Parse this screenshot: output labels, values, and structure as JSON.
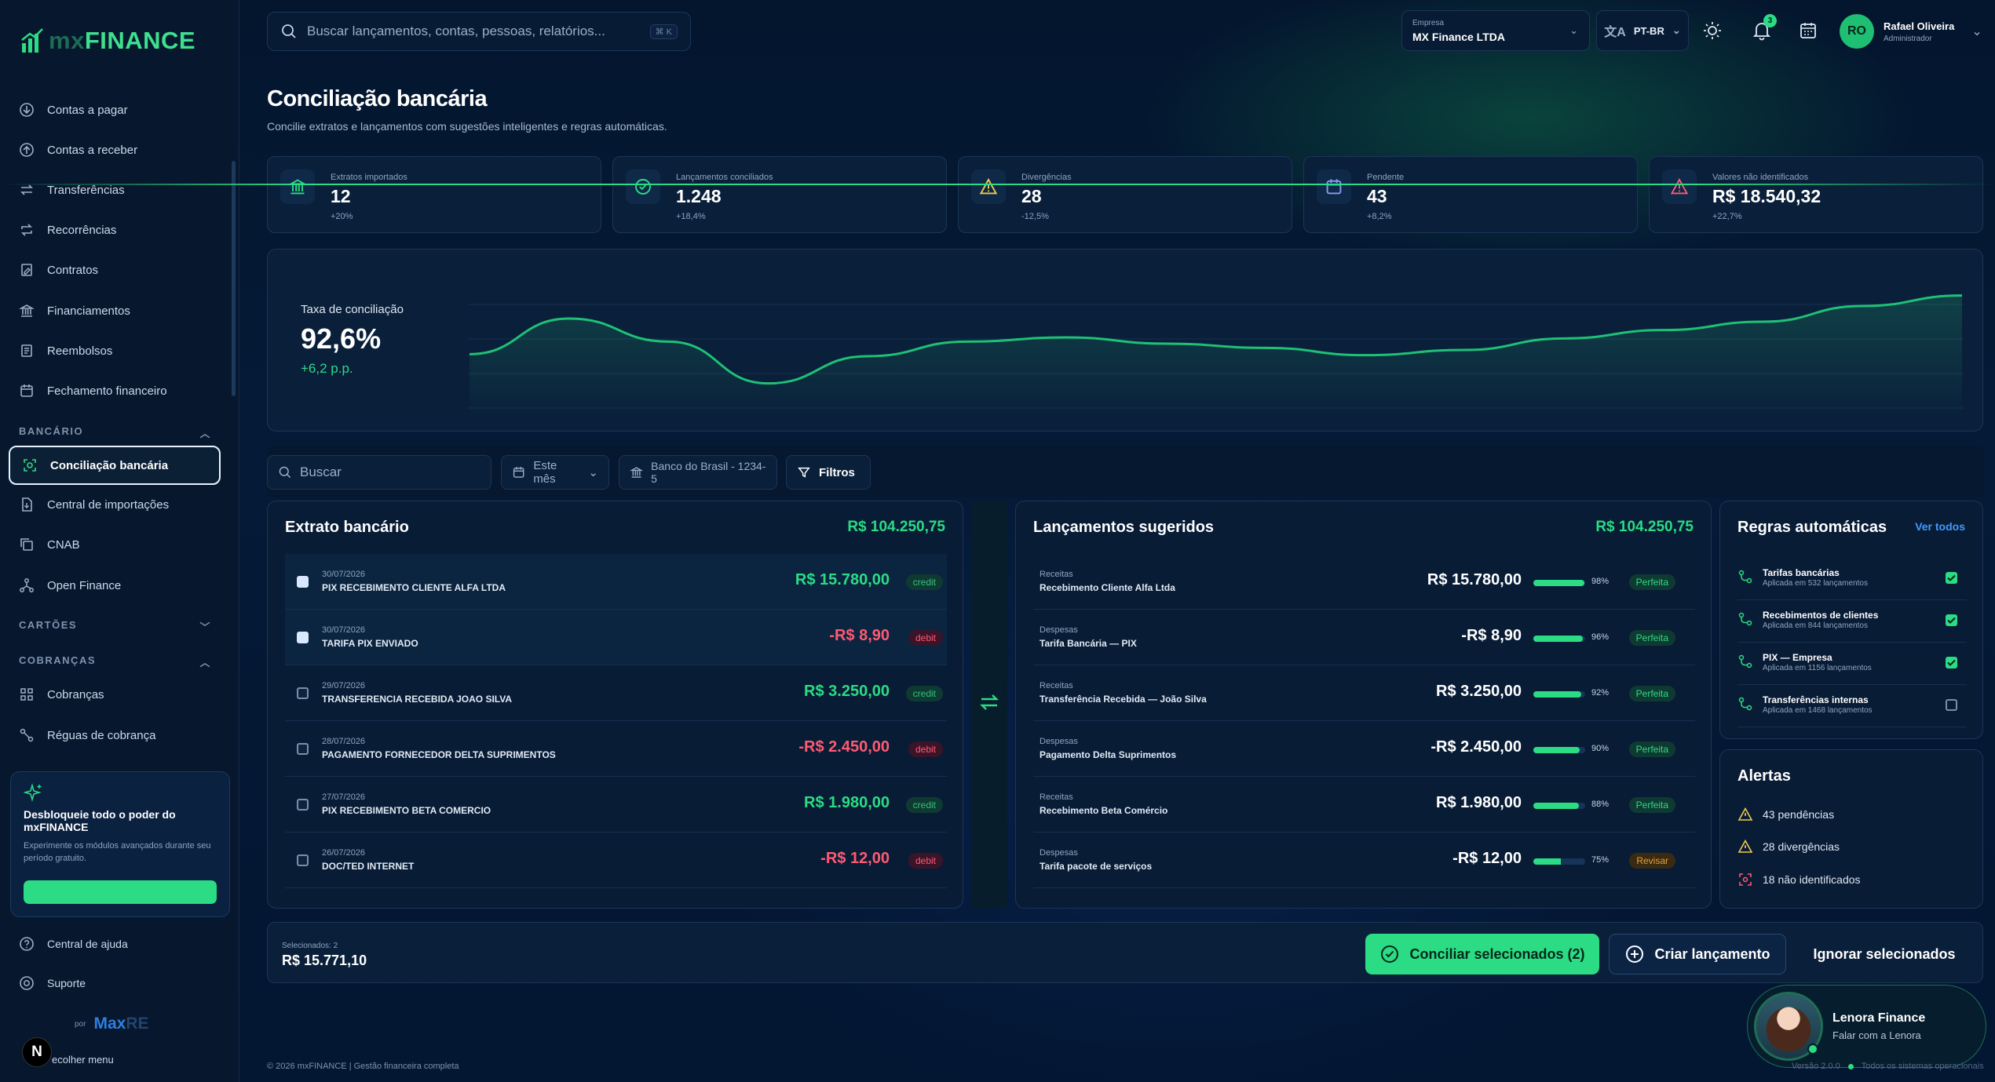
{
  "app": {
    "logo_prefix": "mx",
    "logo_main": "FINANCE"
  },
  "sidebar": {
    "items": [
      {
        "label": "Contas a pagar",
        "icon": "arrow-down-circle-icon"
      },
      {
        "label": "Contas a receber",
        "icon": "arrow-up-circle-icon"
      },
      {
        "label": "Transferências",
        "icon": "transfer-icon"
      },
      {
        "label": "Recorrências",
        "icon": "repeat-icon"
      },
      {
        "label": "Contratos",
        "icon": "contract-icon"
      },
      {
        "label": "Financiamentos",
        "icon": "bank-icon"
      },
      {
        "label": "Reembolsos",
        "icon": "receipt-icon"
      },
      {
        "label": "Fechamento financeiro",
        "icon": "calendar-icon"
      }
    ],
    "section_bancario": "BANCÁRIO",
    "bancario_items": [
      {
        "label": "Conciliação bancária",
        "icon": "reconcile-icon"
      },
      {
        "label": "Central de importações",
        "icon": "import-file-icon"
      },
      {
        "label": "CNAB",
        "icon": "copy-icon"
      },
      {
        "label": "Open Finance",
        "icon": "network-icon"
      }
    ],
    "section_cartoes": "CARTÕES",
    "section_cobrancas": "COBRANÇAS",
    "cobrancas_items": [
      {
        "label": "Cobranças",
        "icon": "grid-icon"
      },
      {
        "label": "Réguas de cobrança",
        "icon": "route-icon"
      }
    ],
    "promo": {
      "title": "Desbloqueie todo o poder do mxFINANCE",
      "text": "Experimente os módulos avançados durante seu período gratuito."
    },
    "help": "Central de ajuda",
    "support": "Suporte",
    "powered_by": "por",
    "powered_brand_a": "Max",
    "powered_brand_b": "RE",
    "collapse": "ecolher menu",
    "badge_letter": "N"
  },
  "header": {
    "search_placeholder": "Buscar lançamentos, contas, pessoas, relatórios...",
    "search_shortcut": "⌘ K",
    "company_label": "Empresa",
    "company_value": "MX Finance LTDA",
    "language": "PT-BR",
    "notif_count": "3",
    "user_initials": "RO",
    "user_name": "Rafael Oliveira",
    "user_role": "Administrador"
  },
  "page": {
    "title": "Conciliação bancária",
    "subtitle": "Concilie extratos e lançamentos com sugestões inteligentes e regras automáticas."
  },
  "kpis": [
    {
      "label": "Extratos importados",
      "value": "12",
      "delta": "+20%",
      "icon": "bank-icon",
      "color": "#2bdc84"
    },
    {
      "label": "Lançamentos conciliados",
      "value": "1.248",
      "delta": "+18,4%",
      "icon": "check-circle-icon",
      "color": "#2bdc84"
    },
    {
      "label": "Divergências",
      "value": "28",
      "delta": "-12,5%",
      "icon": "warning-icon",
      "color": "#f2c94c"
    },
    {
      "label": "Pendente",
      "value": "43",
      "delta": "+8,2%",
      "icon": "calendar-icon",
      "color": "#8b9cf0"
    },
    {
      "label": "Valores não identificados",
      "value": "R$ 18.540,32",
      "delta": "+22,7%",
      "icon": "alert-triangle-icon",
      "color": "#ff5a72"
    }
  ],
  "rate": {
    "label": "Taxa de conciliação",
    "value": "92,6%",
    "delta": "+6,2 p.p."
  },
  "chart_data": {
    "type": "line",
    "series": [
      {
        "values": [
          87.0,
          90.4,
          88.2,
          84.2,
          86.8,
          88.2,
          88.6,
          88.0,
          87.6,
          86.9,
          87.4,
          88.5,
          89.3,
          90.1,
          91.6,
          92.6
        ]
      }
    ]
  },
  "filters": {
    "search_placeholder": "Buscar",
    "period": "Este mês",
    "account": "Banco do Brasil - 1234-5",
    "filters_btn": "Filtros"
  },
  "extrato": {
    "title": "Extrato bancário",
    "total": "R$ 104.250,75",
    "rows": [
      {
        "date": "30/07/2026",
        "desc": "PIX RECEBIMENTO CLIENTE ALFA LTDA",
        "amount": "R$ 15.780,00",
        "type": "credit",
        "checked": true
      },
      {
        "date": "30/07/2026",
        "desc": "TARIFA PIX ENVIADO",
        "amount": "-R$ 8,90",
        "type": "debit",
        "checked": true
      },
      {
        "date": "29/07/2026",
        "desc": "TRANSFERENCIA RECEBIDA JOAO SILVA",
        "amount": "R$ 3.250,00",
        "type": "credit",
        "checked": false
      },
      {
        "date": "28/07/2026",
        "desc": "PAGAMENTO FORNECEDOR DELTA SUPRIMENTOS",
        "amount": "-R$ 2.450,00",
        "type": "debit",
        "checked": false
      },
      {
        "date": "27/07/2026",
        "desc": "PIX RECEBIMENTO BETA COMERCIO",
        "amount": "R$ 1.980,00",
        "type": "credit",
        "checked": false
      },
      {
        "date": "26/07/2026",
        "desc": "DOC/TED INTERNET",
        "amount": "-R$ 12,00",
        "type": "debit",
        "checked": false
      }
    ]
  },
  "sugeridos": {
    "title": "Lançamentos sugeridos",
    "total": "R$ 104.250,75",
    "rows": [
      {
        "cat": "Receitas",
        "desc": "Recebimento Cliente Alfa Ltda",
        "amount": "R$ 15.780,00",
        "match": 98,
        "match_label": "98%",
        "status": "Perfeita"
      },
      {
        "cat": "Despesas",
        "desc": "Tarifa Bancária — PIX",
        "amount": "-R$ 8,90",
        "match": 96,
        "match_label": "96%",
        "status": "Perfeita"
      },
      {
        "cat": "Receitas",
        "desc": "Transferência Recebida — João Silva",
        "amount": "R$ 3.250,00",
        "match": 92,
        "match_label": "92%",
        "status": "Perfeita"
      },
      {
        "cat": "Despesas",
        "desc": "Pagamento Delta Suprimentos",
        "amount": "-R$ 2.450,00",
        "match": 90,
        "match_label": "90%",
        "status": "Perfeita"
      },
      {
        "cat": "Receitas",
        "desc": "Recebimento Beta Comércio",
        "amount": "R$ 1.980,00",
        "match": 88,
        "match_label": "88%",
        "status": "Perfeita"
      },
      {
        "cat": "Despesas",
        "desc": "Tarifa pacote de serviços",
        "amount": "-R$ 12,00",
        "match": 75,
        "match_label": "75%",
        "status": "Revisar"
      }
    ]
  },
  "rules": {
    "title": "Regras automáticas",
    "see_all": "Ver todos",
    "items": [
      {
        "title": "Tarifas bancárias",
        "sub": "Aplicada em 532 lançamentos",
        "on": true
      },
      {
        "title": "Recebimentos de clientes",
        "sub": "Aplicada em 844 lançamentos",
        "on": true
      },
      {
        "title": "PIX — Empresa",
        "sub": "Aplicada em 1156 lançamentos",
        "on": true
      },
      {
        "title": "Transferências internas",
        "sub": "Aplicada em 1468 lançamentos",
        "on": false
      }
    ]
  },
  "alerts": {
    "title": "Alertas",
    "items": [
      {
        "text": "43 pendências",
        "icon": "warning-icon"
      },
      {
        "text": "28 divergências",
        "icon": "warning-icon"
      },
      {
        "text": "18 não identificados",
        "icon": "scan-icon"
      }
    ]
  },
  "selection": {
    "label": "Selecionados: 2",
    "total": "R$ 15.771,10",
    "reconcile": "Conciliar selecionados (2)",
    "create": "Criar lançamento",
    "ignore": "Ignorar selecionados"
  },
  "assistant": {
    "name": "Lenora Finance",
    "cta": "Falar com a Lenora"
  },
  "footer": {
    "copyright": "© 2026 mxFINANCE | Gestão financeira completa",
    "version": "Versão 2.0.0",
    "status": "Todos os sistemas operacionais"
  }
}
